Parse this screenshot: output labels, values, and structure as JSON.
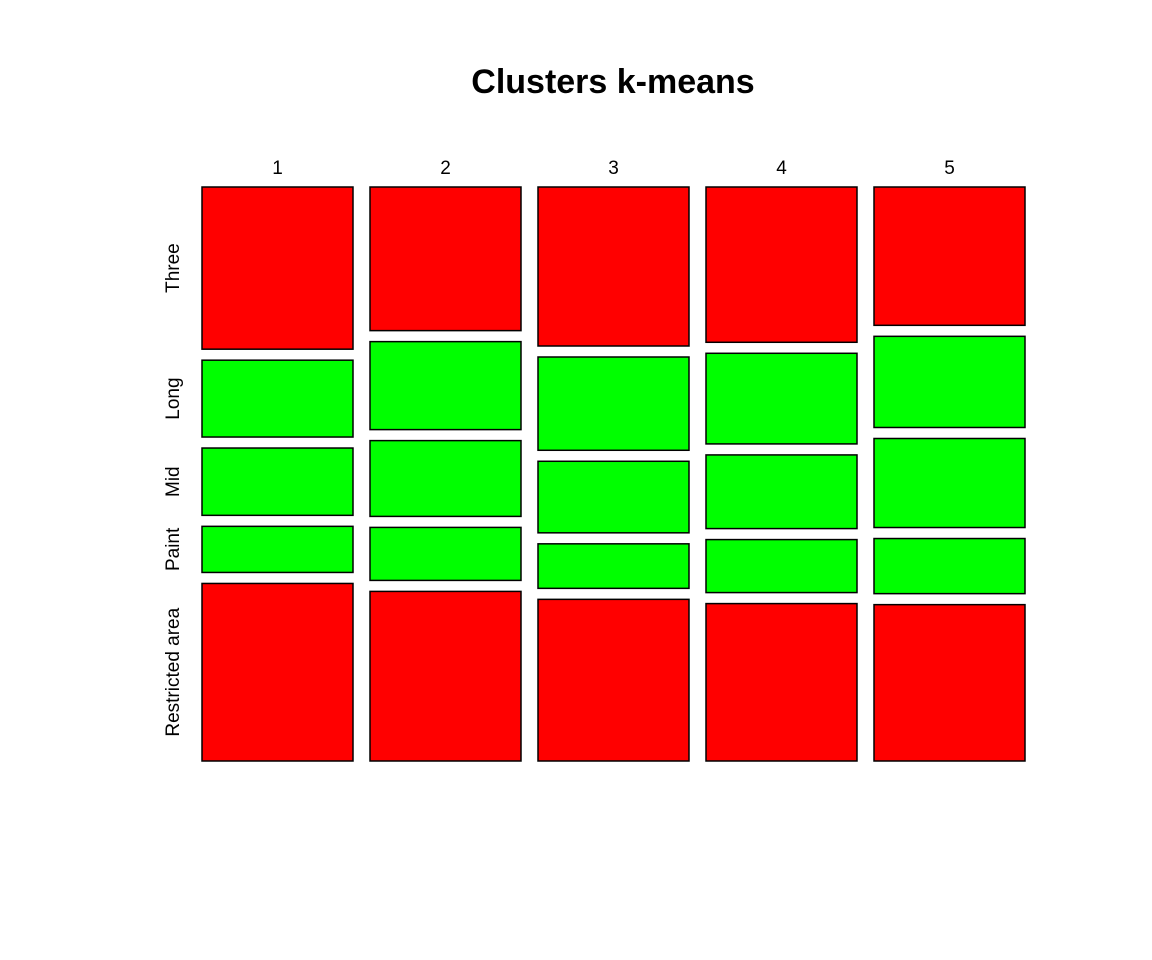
{
  "chart_data": {
    "type": "mosaic",
    "title": "Clusters k-means",
    "columns": [
      "1",
      "2",
      "3",
      "4",
      "5"
    ],
    "rows": [
      "Three",
      "Long",
      "Mid",
      "Paint",
      "Restricted area"
    ],
    "row_colors": [
      "#ff0000",
      "#00ff00",
      "#00ff00",
      "#00ff00",
      "#ff0000"
    ],
    "proportions": [
      [
        0.306,
        0.145,
        0.127,
        0.087,
        0.335
      ],
      [
        0.271,
        0.166,
        0.143,
        0.1,
        0.32
      ],
      [
        0.3,
        0.176,
        0.135,
        0.084,
        0.305
      ],
      [
        0.293,
        0.171,
        0.139,
        0.1,
        0.297
      ],
      [
        0.261,
        0.172,
        0.168,
        0.104,
        0.295
      ]
    ],
    "column_widths": [
      0.2,
      0.2,
      0.2,
      0.2,
      0.2
    ]
  }
}
